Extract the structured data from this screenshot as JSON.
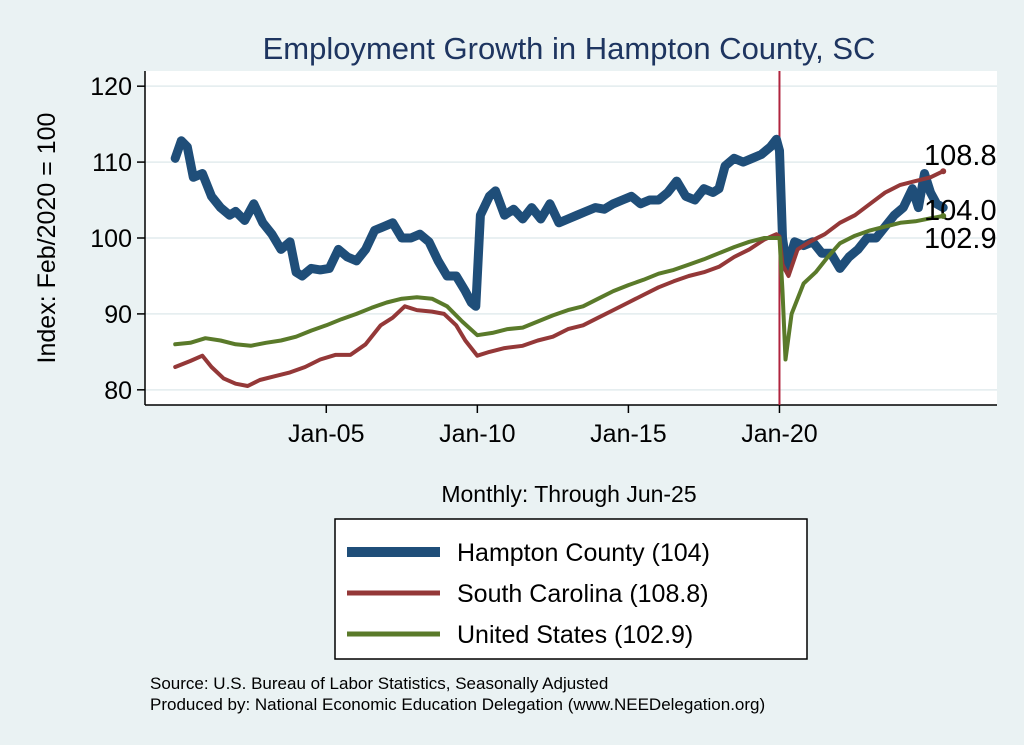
{
  "chart_data": {
    "type": "line",
    "title": "Employment Growth in Hampton  County, SC",
    "xlabel": "Monthly: Through Jun-25",
    "ylabel": "Index: Feb/2020 = 100",
    "x_range": [
      "Jan-00",
      "Jun-25"
    ],
    "ylim": [
      78,
      122
    ],
    "yticks": [
      80,
      90,
      100,
      110,
      120
    ],
    "xticks": [
      {
        "label": "Jan-05",
        "x": 2005.0
      },
      {
        "label": "Jan-10",
        "x": 2010.0
      },
      {
        "label": "Jan-15",
        "x": 2015.0
      },
      {
        "label": "Jan-20",
        "x": 2020.0
      }
    ],
    "grid": true,
    "reference_line": {
      "x": 2020.0,
      "color": "#b0243e"
    },
    "legend_position": "bottom",
    "series": [
      {
        "name": "Hampton  County (104)",
        "color": "#1f4e79",
        "width": 9,
        "end_label": "104.0",
        "points": [
          [
            2000.0,
            110.5
          ],
          [
            2000.2,
            112.8
          ],
          [
            2000.4,
            112.0
          ],
          [
            2000.6,
            108.0
          ],
          [
            2000.9,
            108.5
          ],
          [
            2001.2,
            105.5
          ],
          [
            2001.5,
            104.0
          ],
          [
            2001.8,
            103.0
          ],
          [
            2002.0,
            103.5
          ],
          [
            2002.3,
            102.3
          ],
          [
            2002.6,
            104.5
          ],
          [
            2002.9,
            102.0
          ],
          [
            2003.2,
            100.5
          ],
          [
            2003.5,
            98.5
          ],
          [
            2003.8,
            99.5
          ],
          [
            2004.0,
            95.5
          ],
          [
            2004.2,
            95.0
          ],
          [
            2004.5,
            96.0
          ],
          [
            2004.8,
            95.8
          ],
          [
            2005.1,
            96.0
          ],
          [
            2005.4,
            98.5
          ],
          [
            2005.7,
            97.5
          ],
          [
            2006.0,
            97.0
          ],
          [
            2006.3,
            98.5
          ],
          [
            2006.6,
            101.0
          ],
          [
            2006.9,
            101.5
          ],
          [
            2007.2,
            102.0
          ],
          [
            2007.5,
            100.0
          ],
          [
            2007.8,
            100.0
          ],
          [
            2008.1,
            100.5
          ],
          [
            2008.4,
            99.5
          ],
          [
            2008.7,
            97.0
          ],
          [
            2009.0,
            95.0
          ],
          [
            2009.3,
            95.0
          ],
          [
            2009.6,
            93.0
          ],
          [
            2009.8,
            91.5
          ],
          [
            2009.95,
            91.0
          ],
          [
            2010.1,
            103.0
          ],
          [
            2010.4,
            105.5
          ],
          [
            2010.6,
            106.2
          ],
          [
            2010.9,
            103.0
          ],
          [
            2011.2,
            103.8
          ],
          [
            2011.5,
            102.5
          ],
          [
            2011.8,
            104.0
          ],
          [
            2012.1,
            102.5
          ],
          [
            2012.4,
            104.5
          ],
          [
            2012.7,
            102.0
          ],
          [
            2013.0,
            102.5
          ],
          [
            2013.3,
            103.0
          ],
          [
            2013.6,
            103.5
          ],
          [
            2013.9,
            104.0
          ],
          [
            2014.2,
            103.8
          ],
          [
            2014.5,
            104.5
          ],
          [
            2014.8,
            105.0
          ],
          [
            2015.1,
            105.5
          ],
          [
            2015.4,
            104.5
          ],
          [
            2015.7,
            105.0
          ],
          [
            2016.0,
            105.0
          ],
          [
            2016.3,
            106.0
          ],
          [
            2016.6,
            107.5
          ],
          [
            2016.9,
            105.5
          ],
          [
            2017.2,
            105.0
          ],
          [
            2017.5,
            106.5
          ],
          [
            2017.8,
            106.0
          ],
          [
            2018.0,
            106.5
          ],
          [
            2018.2,
            109.5
          ],
          [
            2018.5,
            110.5
          ],
          [
            2018.8,
            110.0
          ],
          [
            2019.1,
            110.5
          ],
          [
            2019.4,
            111.0
          ],
          [
            2019.7,
            112.0
          ],
          [
            2019.9,
            113.0
          ],
          [
            2020.0,
            111.5
          ],
          [
            2020.1,
            100.0
          ],
          [
            2020.25,
            96.0
          ],
          [
            2020.5,
            99.5
          ],
          [
            2020.8,
            99.0
          ],
          [
            2021.1,
            99.5
          ],
          [
            2021.4,
            98.0
          ],
          [
            2021.7,
            98.0
          ],
          [
            2022.0,
            96.0
          ],
          [
            2022.3,
            97.5
          ],
          [
            2022.6,
            98.5
          ],
          [
            2022.9,
            100.0
          ],
          [
            2023.2,
            100.0
          ],
          [
            2023.5,
            101.5
          ],
          [
            2023.8,
            103.0
          ],
          [
            2024.1,
            104.0
          ],
          [
            2024.4,
            106.5
          ],
          [
            2024.6,
            104.0
          ],
          [
            2024.8,
            108.5
          ],
          [
            2025.0,
            106.0
          ],
          [
            2025.2,
            104.5
          ],
          [
            2025.42,
            104.0
          ]
        ]
      },
      {
        "name": "South Carolina (108.8)",
        "color": "#943838",
        "width": 4,
        "end_label": "108.8",
        "points": [
          [
            2000.0,
            83.0
          ],
          [
            2000.5,
            83.8
          ],
          [
            2000.9,
            84.5
          ],
          [
            2001.2,
            83.0
          ],
          [
            2001.6,
            81.5
          ],
          [
            2002.0,
            80.8
          ],
          [
            2002.4,
            80.5
          ],
          [
            2002.8,
            81.3
          ],
          [
            2003.3,
            81.8
          ],
          [
            2003.8,
            82.3
          ],
          [
            2004.3,
            83.0
          ],
          [
            2004.8,
            84.0
          ],
          [
            2005.3,
            84.6
          ],
          [
            2005.8,
            84.6
          ],
          [
            2006.3,
            86.0
          ],
          [
            2006.8,
            88.5
          ],
          [
            2007.2,
            89.5
          ],
          [
            2007.6,
            91.0
          ],
          [
            2008.0,
            90.5
          ],
          [
            2008.5,
            90.3
          ],
          [
            2008.9,
            90.0
          ],
          [
            2009.3,
            88.5
          ],
          [
            2009.6,
            86.5
          ],
          [
            2010.0,
            84.5
          ],
          [
            2010.4,
            85.0
          ],
          [
            2010.9,
            85.5
          ],
          [
            2011.5,
            85.8
          ],
          [
            2012.0,
            86.5
          ],
          [
            2012.5,
            87.0
          ],
          [
            2013.0,
            88.0
          ],
          [
            2013.5,
            88.5
          ],
          [
            2014.0,
            89.5
          ],
          [
            2014.5,
            90.5
          ],
          [
            2015.0,
            91.5
          ],
          [
            2015.5,
            92.5
          ],
          [
            2016.0,
            93.5
          ],
          [
            2016.5,
            94.3
          ],
          [
            2017.0,
            95.0
          ],
          [
            2017.5,
            95.5
          ],
          [
            2018.0,
            96.2
          ],
          [
            2018.5,
            97.5
          ],
          [
            2019.0,
            98.5
          ],
          [
            2019.5,
            99.8
          ],
          [
            2019.9,
            100.5
          ],
          [
            2020.0,
            100.2
          ],
          [
            2020.1,
            96.5
          ],
          [
            2020.3,
            95.0
          ],
          [
            2020.6,
            98.5
          ],
          [
            2021.0,
            99.5
          ],
          [
            2021.5,
            100.5
          ],
          [
            2022.0,
            102.0
          ],
          [
            2022.5,
            103.0
          ],
          [
            2023.0,
            104.5
          ],
          [
            2023.5,
            106.0
          ],
          [
            2024.0,
            107.0
          ],
          [
            2024.5,
            107.5
          ],
          [
            2025.0,
            108.0
          ],
          [
            2025.42,
            108.8
          ]
        ]
      },
      {
        "name": "United States (102.9)",
        "color": "#5a7a2a",
        "width": 4,
        "end_label": "102.9",
        "points": [
          [
            2000.0,
            86.0
          ],
          [
            2000.5,
            86.2
          ],
          [
            2001.0,
            86.8
          ],
          [
            2001.5,
            86.5
          ],
          [
            2002.0,
            86.0
          ],
          [
            2002.5,
            85.8
          ],
          [
            2003.0,
            86.2
          ],
          [
            2003.5,
            86.5
          ],
          [
            2004.0,
            87.0
          ],
          [
            2004.5,
            87.8
          ],
          [
            2005.0,
            88.5
          ],
          [
            2005.5,
            89.3
          ],
          [
            2006.0,
            90.0
          ],
          [
            2006.5,
            90.8
          ],
          [
            2007.0,
            91.5
          ],
          [
            2007.5,
            92.0
          ],
          [
            2008.0,
            92.2
          ],
          [
            2008.5,
            92.0
          ],
          [
            2009.0,
            91.0
          ],
          [
            2009.5,
            89.0
          ],
          [
            2010.0,
            87.2
          ],
          [
            2010.5,
            87.5
          ],
          [
            2011.0,
            88.0
          ],
          [
            2011.5,
            88.2
          ],
          [
            2012.0,
            89.0
          ],
          [
            2012.5,
            89.8
          ],
          [
            2013.0,
            90.5
          ],
          [
            2013.5,
            91.0
          ],
          [
            2014.0,
            92.0
          ],
          [
            2014.5,
            93.0
          ],
          [
            2015.0,
            93.8
          ],
          [
            2015.5,
            94.5
          ],
          [
            2016.0,
            95.3
          ],
          [
            2016.5,
            95.8
          ],
          [
            2017.0,
            96.5
          ],
          [
            2017.5,
            97.2
          ],
          [
            2018.0,
            98.0
          ],
          [
            2018.5,
            98.8
          ],
          [
            2019.0,
            99.5
          ],
          [
            2019.5,
            100.0
          ],
          [
            2020.0,
            100.0
          ],
          [
            2020.1,
            93.0
          ],
          [
            2020.2,
            84.0
          ],
          [
            2020.4,
            90.0
          ],
          [
            2020.8,
            94.0
          ],
          [
            2021.2,
            95.5
          ],
          [
            2021.6,
            97.5
          ],
          [
            2022.0,
            99.3
          ],
          [
            2022.5,
            100.3
          ],
          [
            2023.0,
            101.0
          ],
          [
            2023.5,
            101.5
          ],
          [
            2024.0,
            102.0
          ],
          [
            2024.5,
            102.2
          ],
          [
            2025.0,
            102.6
          ],
          [
            2025.42,
            102.9
          ]
        ]
      }
    ]
  },
  "source_line": "Source: U.S. Bureau of Labor Statistics, Seasonally Adjusted",
  "produced_line": "Produced by: National Economic Education Delegation (www.NEEDelegation.org)"
}
